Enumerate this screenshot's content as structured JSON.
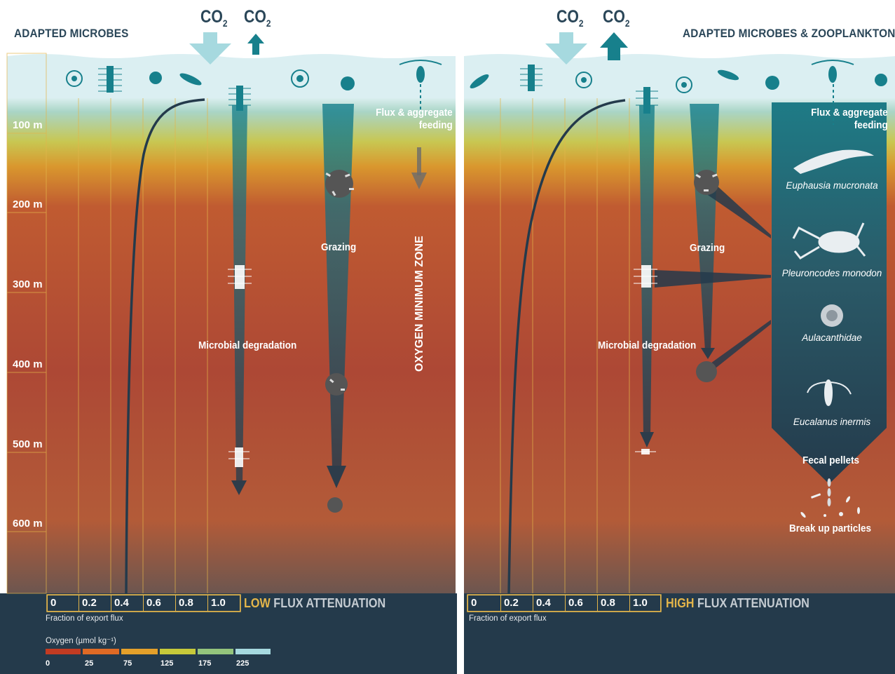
{
  "panels": [
    {
      "title": "ADAPTED MICROBES",
      "co2_down": "CO",
      "co2_up": "CO",
      "co2_sub": "2",
      "depth_labels": [
        "100 m",
        "200 m",
        "300 m",
        "400 m",
        "500 m",
        "600 m"
      ],
      "process_labels": {
        "flux_feeding": "Flux & aggregate\nfeeding",
        "grazing": "Grazing",
        "microbial": "Microbial degradation",
        "omz": "OXYGEN MINIMUM ZONE"
      },
      "flux_scale": [
        "0",
        "0.2",
        "0.4",
        "0.6",
        "0.8",
        "1.0"
      ],
      "attenuation_highlight": "LOW",
      "attenuation_rest": " FLUX ATTENUATION",
      "flux_axis_label": "Fraction of export flux",
      "oxygen_legend": {
        "title": "Oxygen (µmol kg⁻¹)",
        "ticks": [
          "0",
          "25",
          "75",
          "125",
          "175",
          "225"
        ],
        "colors": [
          "#c23b22",
          "#df6a25",
          "#e4a02a",
          "#c7c93a",
          "#94c47c",
          "#a6d9df"
        ]
      }
    },
    {
      "title": "ADAPTED MICROBES & ZOOPLANKTON",
      "co2_down": "CO",
      "co2_up": "CO",
      "co2_sub": "2",
      "process_labels": {
        "flux_feeding": "Flux & aggregate\nfeeding",
        "grazing": "Grazing",
        "microbial": "Microbial degradation",
        "fecal": "Fecal pellets",
        "breakup": "Break up particles"
      },
      "species": [
        "Euphausia mucronata",
        "Pleuroncodes monodon",
        "Aulacanthidae",
        "Eucalanus inermis"
      ],
      "flux_scale": [
        "0",
        "0.2",
        "0.4",
        "0.6",
        "0.8",
        "1.0"
      ],
      "attenuation_highlight": "HIGH",
      "attenuation_rest": " FLUX ATTENUATION",
      "flux_axis_label": "Fraction of export flux"
    }
  ],
  "colors": {
    "navy": "#233a4b",
    "teal": "#17808c",
    "gold": "#e3b54a",
    "surface": "#dbeff2"
  }
}
